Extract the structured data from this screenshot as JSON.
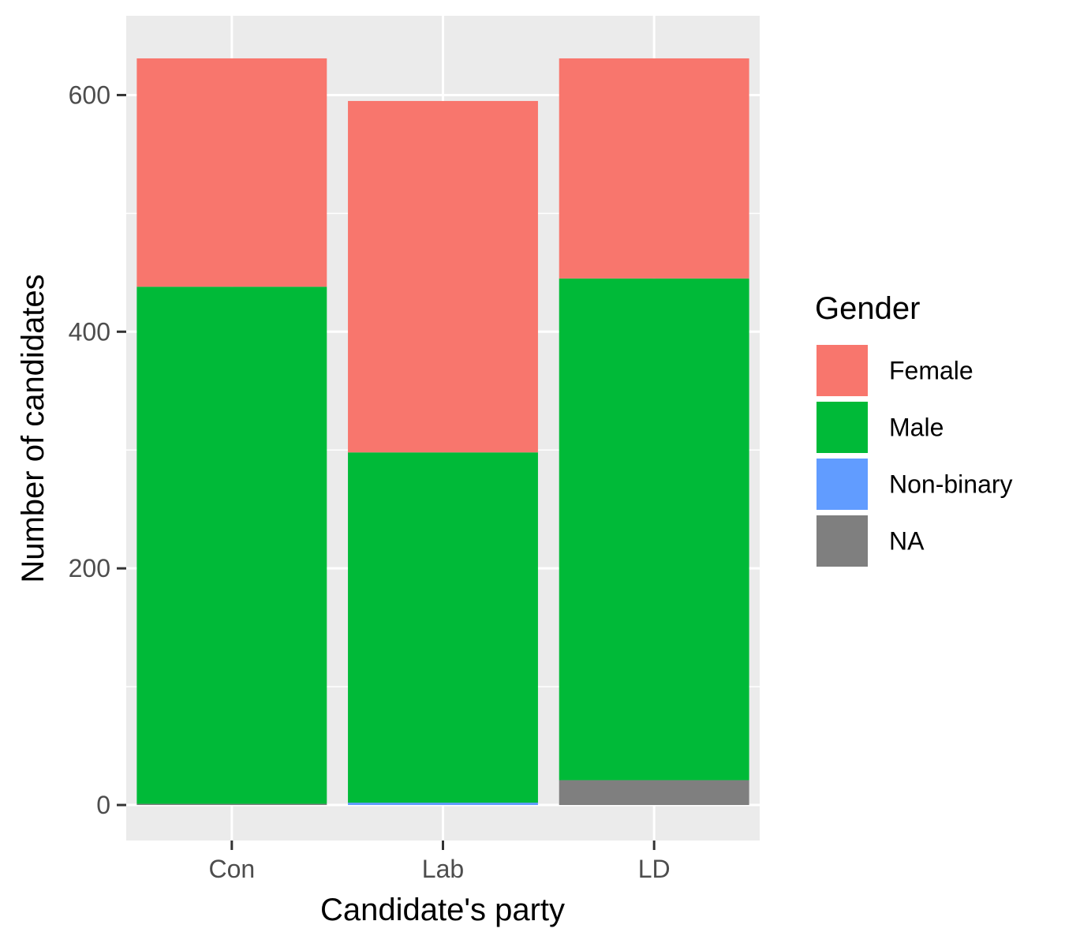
{
  "chart_data": {
    "type": "bar",
    "stacked": true,
    "title": "",
    "xlabel": "Candidate's party",
    "ylabel": "Number of candidates",
    "categories": [
      "Con",
      "Lab",
      "LD"
    ],
    "series": [
      {
        "name": "Female",
        "color": "#F8766D",
        "values": [
          193,
          297,
          186
        ]
      },
      {
        "name": "Male",
        "color": "#00BA38",
        "values": [
          437,
          296,
          424
        ]
      },
      {
        "name": "Non-binary",
        "color": "#619CFF",
        "values": [
          0,
          2,
          0
        ]
      },
      {
        "name": "NA",
        "color": "#7F7F7F",
        "values": [
          1,
          0,
          21
        ]
      }
    ],
    "stack_order": [
      "NA",
      "Non-binary",
      "Male",
      "Female"
    ],
    "yticks": [
      "0",
      "200",
      "400",
      "600"
    ],
    "ylim": [
      -30,
      667
    ],
    "grid": true,
    "legend": {
      "title": "Gender",
      "position": "right"
    }
  }
}
